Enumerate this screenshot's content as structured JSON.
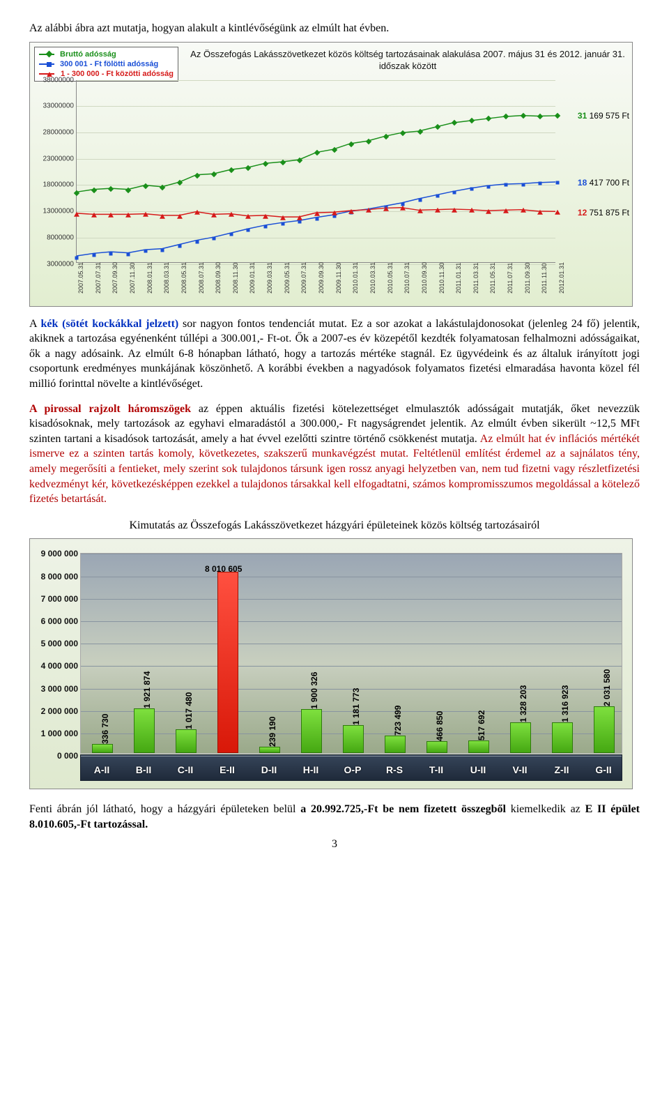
{
  "intro": "Az alábbi ábra azt mutatja, hogyan alakult a kintlévőségünk az elmúlt hat évben.",
  "chart1": {
    "type": "line",
    "title": "Az Összefogás Lakásszövetkezet közös költség tartozásainak alakulása\n2007. május 31 és 2012. január 31. időszak között",
    "legend": [
      {
        "label": "Bruttó adósság",
        "color": "#1a8f1a",
        "marker": "diamond"
      },
      {
        "label": "300 001 - Ft fölötti adósság",
        "color": "#1a4fd6",
        "marker": "square"
      },
      {
        "label": "1 - 300 000 - Ft közötti adósság",
        "color": "#d61a1a",
        "marker": "triangle"
      }
    ],
    "ymin": 3000000,
    "ymax": 38000000,
    "ystep": 5000000,
    "yticks": [
      "3000000",
      "8000000",
      "13000000",
      "18000000",
      "23000000",
      "28000000",
      "33000000",
      "38000000"
    ],
    "xticks": [
      "2007.05.31",
      "2007.07.31",
      "2007.09.30",
      "2007.11.30",
      "2008.01.31",
      "2008.03.31",
      "2008.05.31",
      "2008.07.31",
      "2008.09.30",
      "2008.11.30",
      "2009.01.31",
      "2009.03.31",
      "2009.05.31",
      "2009.07.31",
      "2009.09.30",
      "2009.11.30",
      "2010.01.31",
      "2010.03.31",
      "2010.05.31",
      "2010.07.31",
      "2010.09.30",
      "2010.11.30",
      "2011.01.31",
      "2011.03.31",
      "2011.05.31",
      "2011.07.31",
      "2011.09.30",
      "2011.11.30",
      "2012.01.31"
    ],
    "series": {
      "brutto": [
        16500000,
        17000000,
        17200000,
        17000000,
        17800000,
        17500000,
        18400000,
        19800000,
        20000000,
        20800000,
        21200000,
        22000000,
        22300000,
        22700000,
        24100000,
        24700000,
        25800000,
        26300000,
        27200000,
        27900000,
        28200000,
        29000000,
        29800000,
        30200000,
        30600000,
        31000000,
        31200000,
        31100000,
        31169575
      ],
      "over300": [
        4200000,
        4700000,
        5000000,
        4800000,
        5400000,
        5600000,
        6400000,
        7200000,
        7800000,
        8600000,
        9400000,
        10100000,
        10600000,
        11000000,
        11600000,
        12100000,
        12800000,
        13200000,
        13800000,
        14400000,
        15200000,
        15900000,
        16600000,
        17200000,
        17700000,
        18000000,
        18100000,
        18300000,
        18417700
      ],
      "under300": [
        12400000,
        12200000,
        12200000,
        12200000,
        12300000,
        12000000,
        12000000,
        12700000,
        12200000,
        12300000,
        11900000,
        12000000,
        11700000,
        11700000,
        12500000,
        12600000,
        12900000,
        13100000,
        13400000,
        13500000,
        13000000,
        13100000,
        13200000,
        13100000,
        12900000,
        13000000,
        13100000,
        12800000,
        12751875
      ]
    },
    "end_labels": [
      {
        "text": "31 169 575 Ft",
        "value": 31169575,
        "color": "#1a8f1a",
        "split": 2
      },
      {
        "text": "18 417 700 Ft",
        "value": 18417700,
        "color": "#1a4fd6",
        "split": 2
      },
      {
        "text": "12 751 875 Ft",
        "value": 12751875,
        "color": "#d61a1a",
        "split": 2
      }
    ],
    "grid_color": "#cfd8c1",
    "background": "linear-gradient(#f8faf6,#e2eed0)"
  },
  "para1_a": "A ",
  "para1_b": "kék (sötét kockákkal jelzett)",
  "para1_c": " sor nagyon fontos tendenciát mutat. Ez a sor azokat a lakástulajdonosokat (jelenleg 24 fő) jelentik, akiknek a tartozása egyénenként túllépi a 300.001,- Ft-ot. Ők a 2007-es év közepétől kezdték folyamatosan felhalmozni adósságaikat, ők a nagy adósaink. Az elmúlt 6-8 hónapban látható, hogy a tartozás mértéke stagnál. Ez ügyvédeink és az általuk irányított jogi csoportunk eredményes munkájának köszönhető. A korábbi években a nagyadósok folyamatos fizetési elmaradása havonta közel fél millió forinttal növelte a kintlévőséget.",
  "para2_a": "A pirossal rajzolt háromszögek",
  "para2_b": " az éppen aktuális fizetési kötelezettséget elmulasztók adósságait mutatják, őket nevezzük kisadósoknak, mely tartozások az egyhavi elmaradástól a 300.000,- Ft nagyságrendet jelentik. Az elmúlt évben sikerült ~12,5 MFt szinten tartani a kisadósok tartozását, amely a hat évvel ezelőtti szintre történő csökkenést mutatja. ",
  "para2_c": "Az elmúlt hat év inflációs mértékét ismerve ez a szinten tartás komoly, következetes, szakszerű munkavégzést mutat. Feltétlenül említést érdemel az a sajnálatos tény, amely megerősíti a fentieket, mely szerint sok tulajdonos társunk igen rossz anyagi helyzetben van, nem tud fizetni vagy részletfizetési kedvezményt kér, következésképpen ezekkel a tulajdonos társakkal kell elfogadtatni, számos kompromisszumos megoldással a kötelező fizetés betartását.",
  "centered": "Kimutatás az Összefogás Lakásszövetkezet házgyári épületeinek közös költség tartozásairól",
  "chart2": {
    "type": "bar",
    "ymin": 0,
    "ymax": 9000000,
    "ystep": 1000000,
    "yticks": [
      "0 000",
      "1 000 000",
      "2 000 000",
      "3 000 000",
      "4 000 000",
      "5 000 000",
      "6 000 000",
      "7 000 000",
      "8 000 000",
      "9 000 000"
    ],
    "categories": [
      "A-II",
      "B-II",
      "C-II",
      "E-II",
      "D-II",
      "H-II",
      "O-P",
      "R-S",
      "T-II",
      "U-II",
      "V-II",
      "Z-II",
      "G-II"
    ],
    "values": [
      336730,
      1921874,
      1017480,
      8010605,
      239190,
      1900326,
      1181773,
      723499,
      466850,
      517692,
      1328203,
      1316923,
      2031580
    ],
    "value_labels": [
      "336 730",
      "1 921 874",
      "1 017 480",
      "8 010 605",
      "239 190",
      "1 900 326",
      "1 181 773",
      "723 499",
      "466 850",
      "517 692",
      "1 328 203",
      "1 316 923",
      "2 031 580"
    ],
    "highlight_index": 3,
    "bar_color": "#4fbb1a",
    "highlight_color": "#e02010",
    "label_fontsize": 12
  },
  "footer_a": "Fenti ábrán jól látható, hogy a házgyári épületeken belül ",
  "footer_b": "a 20.992.725,-Ft be nem fizetett összegből",
  "footer_c": " kiemelkedik az ",
  "footer_d": "E II épület 8.010.605,-Ft tartozással.",
  "page": "3"
}
